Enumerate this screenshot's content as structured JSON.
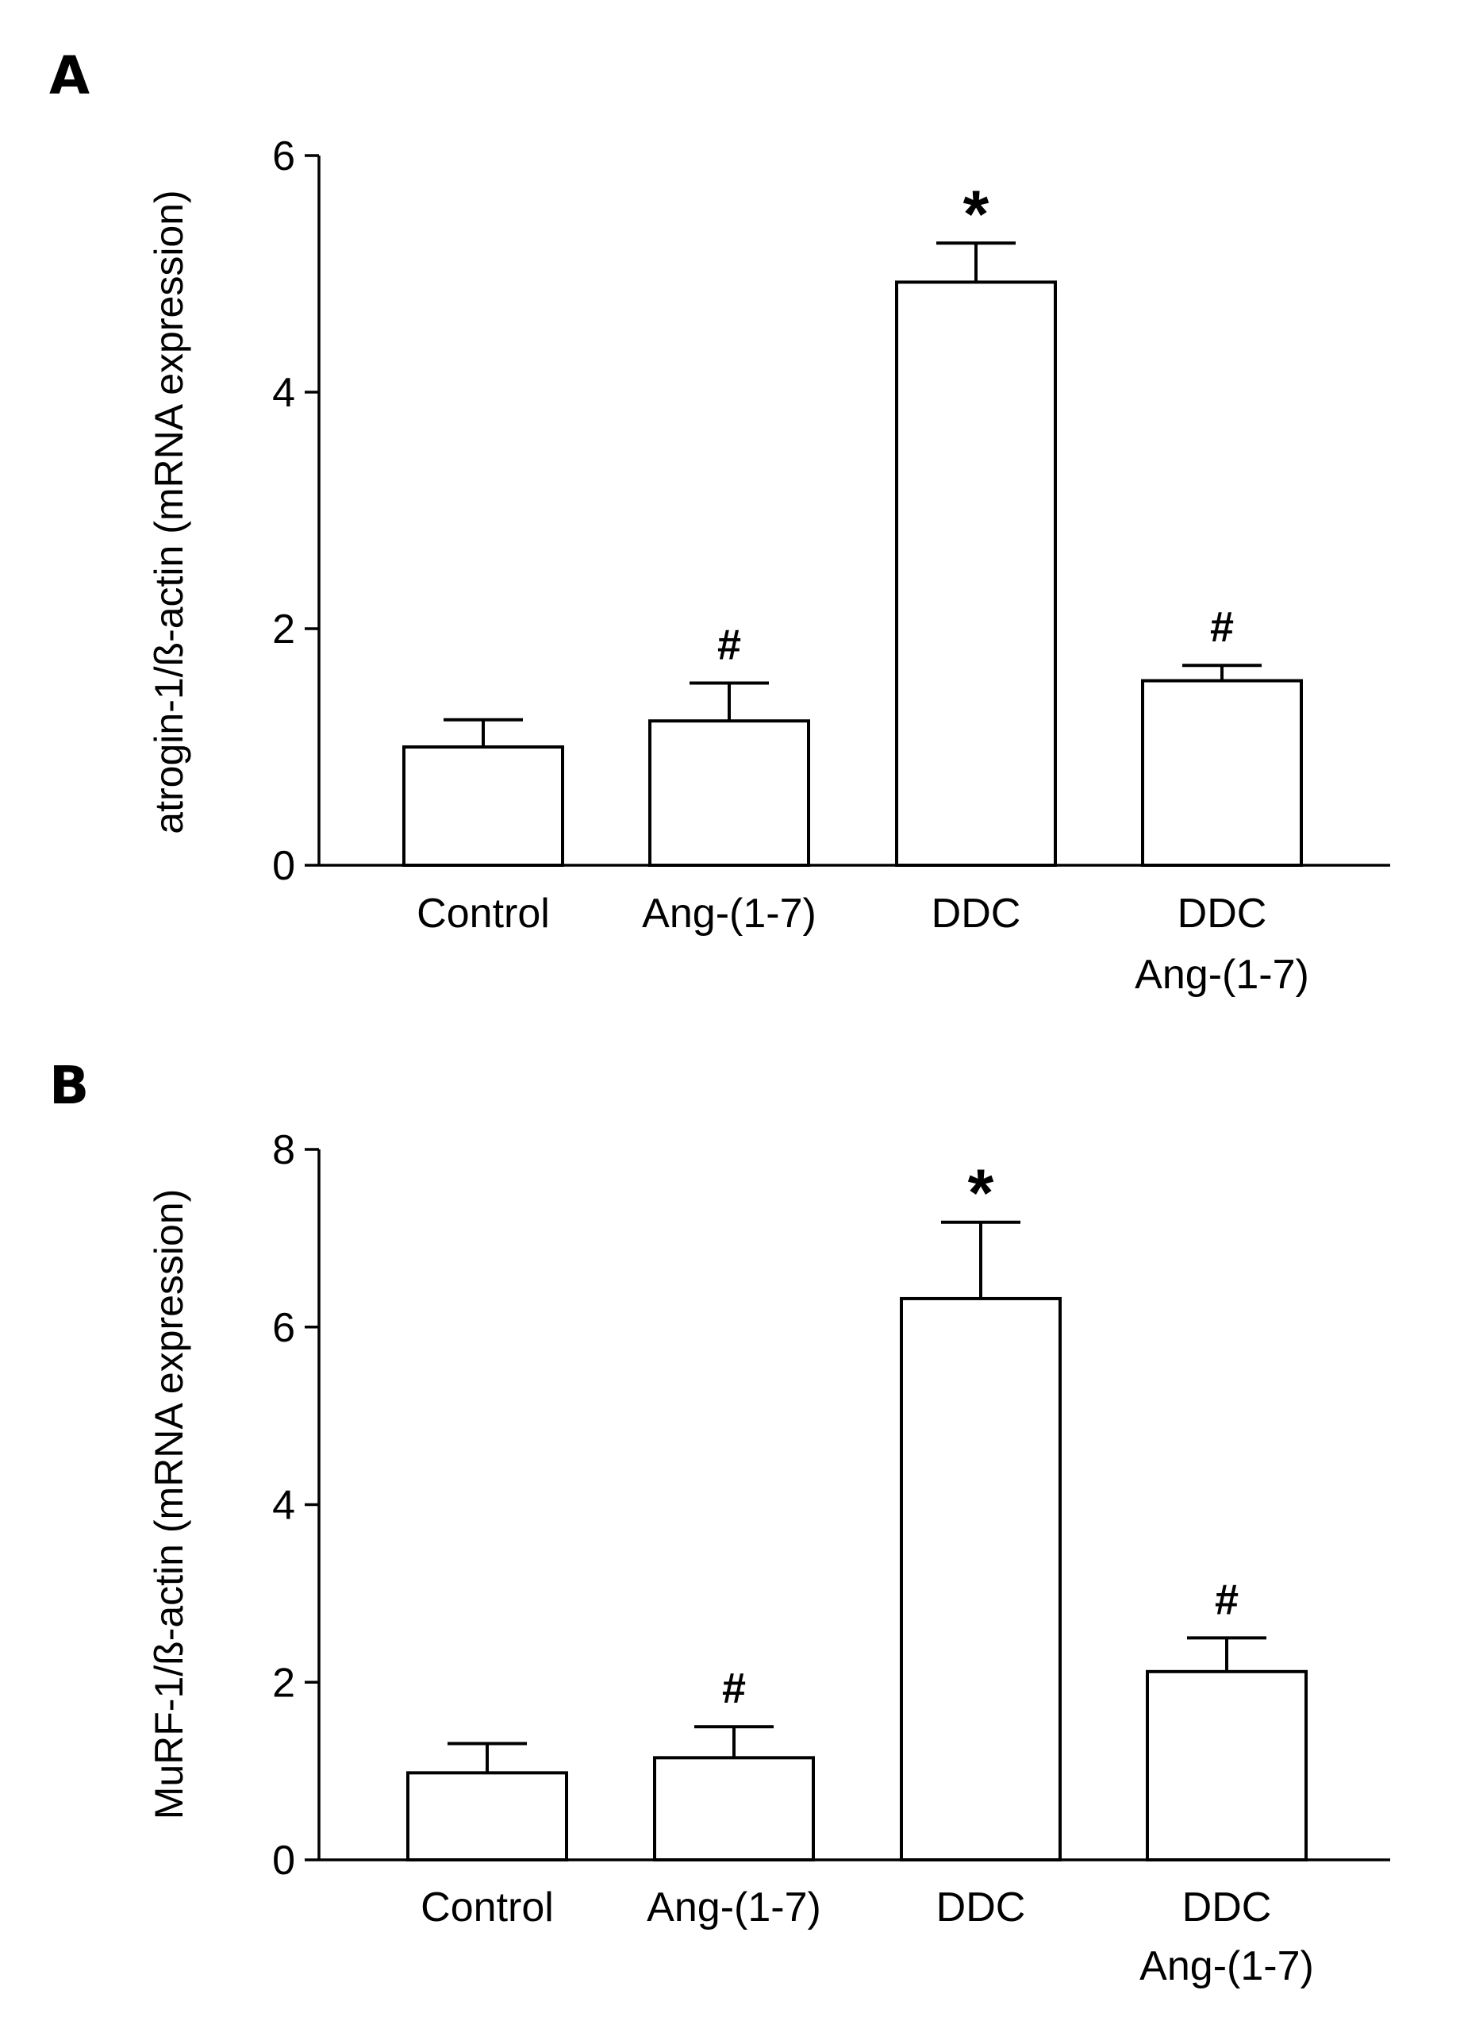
{
  "chart_data": [
    {
      "type": "bar",
      "panel_label": "A",
      "title": "",
      "xlabel": "",
      "ylabel": "atrogin-1/ß-actin (mRNA expression)",
      "ylim": [
        0,
        6
      ],
      "yticks": [
        0,
        2,
        4,
        6
      ],
      "categories": [
        {
          "lines": [
            "Control"
          ]
        },
        {
          "lines": [
            "Ang-(1-7)"
          ]
        },
        {
          "lines": [
            "DDC"
          ]
        },
        {
          "lines": [
            "DDC",
            "Ang-(1-7)"
          ]
        }
      ],
      "values": [
        1.0,
        1.22,
        4.93,
        1.56
      ],
      "errors": [
        0.23,
        0.32,
        0.33,
        0.13
      ],
      "annotations": [
        "",
        "#",
        "*",
        "#"
      ]
    },
    {
      "type": "bar",
      "panel_label": "B",
      "title": "",
      "xlabel": "",
      "ylabel": "MuRF-1/ß-actin (mRNA expression)",
      "ylim": [
        0,
        8
      ],
      "yticks": [
        0,
        2,
        4,
        6,
        8
      ],
      "categories": [
        {
          "lines": [
            "Control"
          ]
        },
        {
          "lines": [
            "Ang-(1-7)"
          ]
        },
        {
          "lines": [
            "DDC"
          ]
        },
        {
          "lines": [
            "DDC",
            "Ang-(1-7)"
          ]
        }
      ],
      "values": [
        0.98,
        1.15,
        6.32,
        2.12
      ],
      "errors": [
        0.33,
        0.35,
        0.86,
        0.38
      ],
      "annotations": [
        "",
        "#",
        "*",
        "#"
      ]
    }
  ]
}
